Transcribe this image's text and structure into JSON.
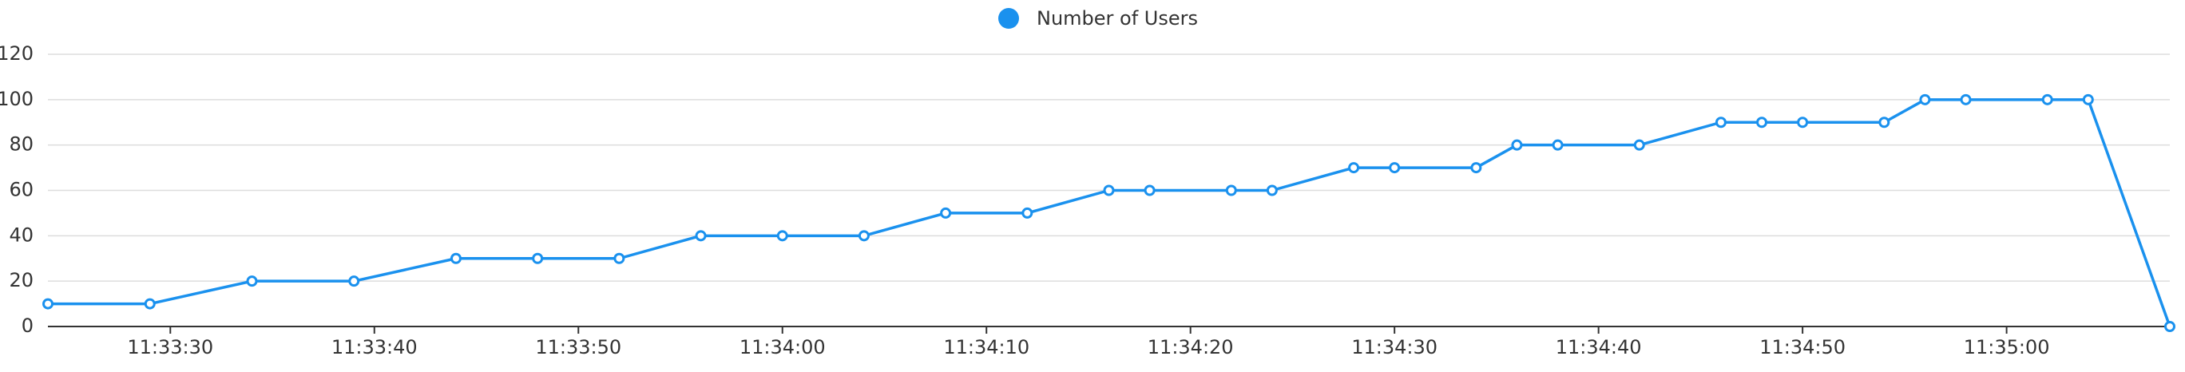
{
  "chart_data": {
    "type": "line",
    "x": [
      "11:33:24",
      "11:33:29",
      "11:33:34",
      "11:33:39",
      "11:33:44",
      "11:33:48",
      "11:33:52",
      "11:33:56",
      "11:34:00",
      "11:34:04",
      "11:34:08",
      "11:34:12",
      "11:34:16",
      "11:34:18",
      "11:34:22",
      "11:34:24",
      "11:34:28",
      "11:34:30",
      "11:34:34",
      "11:34:36",
      "11:34:38",
      "11:34:42",
      "11:34:46",
      "11:34:48",
      "11:34:50",
      "11:34:54",
      "11:34:56",
      "11:34:58",
      "11:35:02",
      "11:35:04",
      "11:35:08"
    ],
    "series": [
      {
        "name": "Number of Users",
        "color": "#1a91ee",
        "values": [
          10,
          10,
          20,
          20,
          30,
          30,
          30,
          40,
          40,
          40,
          50,
          50,
          60,
          60,
          60,
          60,
          70,
          70,
          70,
          80,
          80,
          80,
          90,
          90,
          90,
          90,
          100,
          100,
          100,
          100,
          0
        ]
      }
    ],
    "xlim": [
      "11:33:24",
      "11:35:08"
    ],
    "xticks": [
      "11:33:30",
      "11:33:40",
      "11:33:50",
      "11:34:00",
      "11:34:10",
      "11:34:20",
      "11:34:30",
      "11:34:40",
      "11:34:50",
      "11:35:00"
    ],
    "ylim": [
      0,
      120
    ],
    "yticks": [
      0,
      20,
      40,
      60,
      80,
      100,
      120
    ],
    "grid": true,
    "legend": "top"
  }
}
